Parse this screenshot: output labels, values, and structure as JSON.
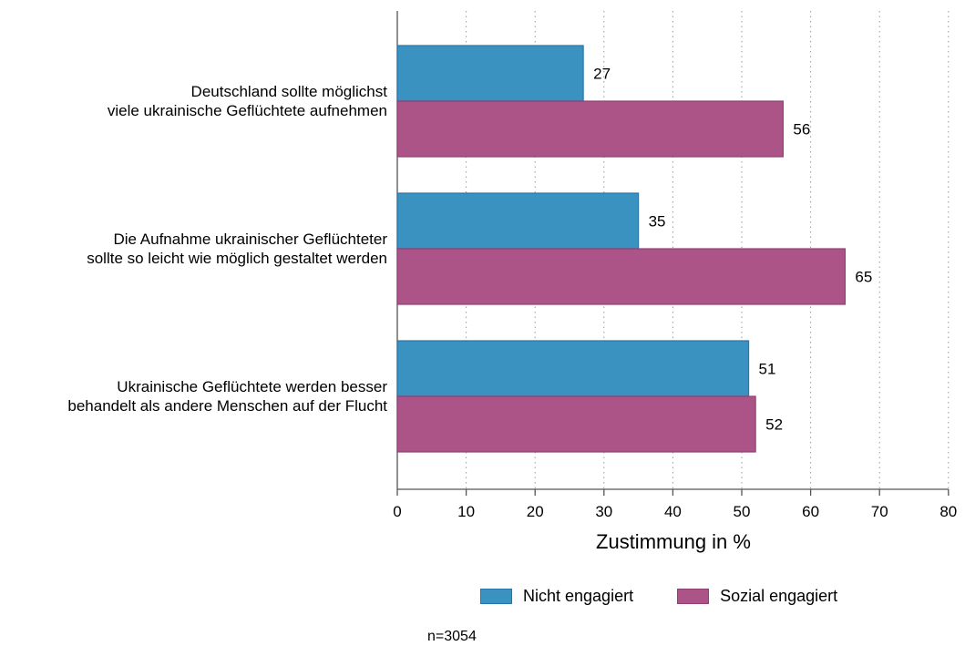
{
  "chart_data": {
    "type": "bar",
    "orientation": "horizontal",
    "categories": [
      [
        "Deutschland sollte möglichst",
        "viele ukrainische Geflüchtete aufnehmen"
      ],
      [
        "Die Aufnahme ukrainischer Geflüchteter",
        "sollte so leicht wie möglich gestaltet werden"
      ],
      [
        "Ukrainische Geflüchtete werden besser",
        "behandelt als andere Menschen auf der Flucht"
      ]
    ],
    "series": [
      {
        "name": "Nicht engagiert",
        "values": [
          27,
          35,
          51
        ],
        "color": "#3a92c1",
        "border": "#2a76a8"
      },
      {
        "name": "Sozial engagiert",
        "values": [
          56,
          65,
          52
        ],
        "color": "#ac5488",
        "border": "#913f71"
      }
    ],
    "xlabel": "Zustimmung in %",
    "xlim": [
      0,
      80
    ],
    "xticks": [
      0,
      10,
      20,
      30,
      40,
      50,
      60,
      70,
      80
    ],
    "grid": "vertical dotted",
    "legend_position": "bottom",
    "note": "n=3054"
  }
}
